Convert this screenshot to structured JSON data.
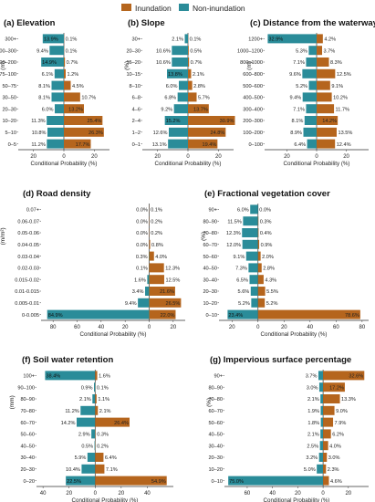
{
  "legend": {
    "items": [
      {
        "label": "Inundation",
        "color": "#b5651d"
      },
      {
        "label": "Non-inundation",
        "color": "#2a8c99"
      }
    ]
  },
  "chart_data": [
    {
      "type": "bar",
      "orientation": "diverging-horizontal",
      "title": "(a) Elevation",
      "ylabel": "(m)",
      "xlabel": "Conditional Probability (%)",
      "categories": [
        "300+",
        "200–300",
        "100–200",
        "75–100",
        "50–75",
        "30–50",
        "20–30",
        "10–20",
        "5–10",
        "0–5"
      ],
      "series": [
        {
          "name": "Non-inundation",
          "values": [
            13.9,
            9.4,
            14.9,
            6.1,
            8.1,
            8.1,
            6.0,
            11.3,
            10.8,
            11.2
          ]
        },
        {
          "name": "Inundation",
          "values": [
            0.1,
            0.1,
            0.7,
            1.2,
            4.5,
            10.7,
            13.2,
            25.4,
            26.3,
            17.7
          ]
        }
      ],
      "xticks": [
        "20",
        "0",
        "20"
      ],
      "xlim": [
        -30,
        30
      ]
    },
    {
      "type": "bar",
      "orientation": "diverging-horizontal",
      "title": "(b) Slope",
      "ylabel": "(%)",
      "xlabel": "Conditional Probability (%)",
      "categories": [
        "30+",
        "20–30",
        "15–20",
        "10–15",
        "8–10",
        "6–8",
        "4–6",
        "2–4",
        "1–2",
        "0–1"
      ],
      "series": [
        {
          "name": "Non-inundation",
          "values": [
            2.1,
            10.6,
            10.6,
            13.8,
            6.0,
            6.8,
            9.2,
            15.2,
            12.6,
            13.1
          ]
        },
        {
          "name": "Inundation",
          "values": [
            0.1,
            0.5,
            0.7,
            2.1,
            2.8,
            5.7,
            13.7,
            30.9,
            24.8,
            19.4
          ]
        }
      ],
      "xticks": [
        "20",
        "0",
        "20"
      ],
      "xlim": [
        -30,
        30
      ]
    },
    {
      "type": "bar",
      "orientation": "diverging-horizontal",
      "title": "(c) Distance from the waterway",
      "ylabel": "(m)",
      "xlabel": "Conditional Probability (%)",
      "categories": [
        "1200+",
        "1000–1200",
        "800–1000",
        "600–800",
        "500–600",
        "400–500",
        "300–400",
        "200–300",
        "100–200",
        "0–100"
      ],
      "series": [
        {
          "name": "Non-inundation",
          "values": [
            32.9,
            5.3,
            7.1,
            9.6,
            5.2,
            9.4,
            7.1,
            8.1,
            8.9,
            6.4
          ]
        },
        {
          "name": "Inundation",
          "values": [
            4.2,
            3.7,
            8.3,
            12.5,
            9.1,
            10.2,
            11.7,
            14.2,
            13.5,
            12.4
          ]
        }
      ],
      "xticks": [
        "20",
        "0",
        "20"
      ],
      "xlim": [
        -35,
        35
      ]
    },
    {
      "type": "bar",
      "orientation": "diverging-horizontal",
      "title": "(d) Road density",
      "ylabel": "(m/m²)",
      "xlabel": "Conditional Probability (%)",
      "categories": [
        "0.07+",
        "0.06-0.07",
        "0.05-0.06",
        "0.04-0.05",
        "0.03-0.04",
        "0.02-0.03",
        "0.015-0.02",
        "0.01-0.015",
        "0.005-0.01",
        "0-0.005"
      ],
      "series": [
        {
          "name": "Non-inundation",
          "values": [
            0.0,
            0.0,
            0.0,
            0.0,
            0.3,
            0.1,
            1.6,
            3.4,
            9.4,
            84.9
          ]
        },
        {
          "name": "Inundation",
          "values": [
            0.1,
            0.2,
            0.2,
            0.8,
            4.0,
            12.3,
            12.5,
            21.6,
            26.5,
            22.0
          ]
        }
      ],
      "xticks": [
        "80",
        "60",
        "40",
        "20",
        "0",
        "20"
      ],
      "xlim": [
        -90,
        30
      ]
    },
    {
      "type": "bar",
      "orientation": "diverging-horizontal",
      "title": "(e) Fractional vegetation cover",
      "ylabel": "(%)",
      "xlabel": "Conditional Probability (%)",
      "categories": [
        "90+",
        "80–90",
        "70–80",
        "60–70",
        "50–60",
        "40–50",
        "30–40",
        "20–30",
        "10–20",
        "0–10"
      ],
      "series": [
        {
          "name": "Non-inundation",
          "values": [
            6.0,
            11.5,
            12.3,
            12.0,
            9.1,
            7.3,
            6.5,
            5.6,
            5.2,
            23.4
          ]
        },
        {
          "name": "Inundation",
          "values": [
            0.0,
            0.3,
            0.4,
            0.9,
            2.0,
            2.8,
            4.3,
            5.5,
            5.2,
            78.6
          ]
        }
      ],
      "xticks": [
        "20",
        "0",
        "20",
        "40",
        "60",
        "80"
      ],
      "xlim": [
        -30,
        85
      ]
    },
    {
      "type": "bar",
      "orientation": "diverging-horizontal",
      "title": "(f) Soil water retention",
      "ylabel": "(mm)",
      "xlabel": "Conditional Probability (%)",
      "categories": [
        "100+",
        "90–100",
        "80–90",
        "70–80",
        "60–70",
        "50–60",
        "40–50",
        "30–40",
        "20–30",
        "0–20"
      ],
      "series": [
        {
          "name": "Non-inundation",
          "values": [
            38.4,
            0.9,
            2.1,
            11.2,
            14.2,
            2.9,
            0.5,
            5.9,
            10.4,
            22.5
          ]
        },
        {
          "name": "Inundation",
          "values": [
            1.6,
            0.1,
            1.1,
            2.1,
            26.4,
            0.3,
            0.2,
            6.4,
            7.1,
            54.9
          ]
        }
      ],
      "xticks": [
        "40",
        "20",
        "0",
        "20",
        "40"
      ],
      "xlim": [
        -45,
        60
      ]
    },
    {
      "type": "bar",
      "orientation": "diverging-horizontal",
      "title": "(g) Impervious surface percentage",
      "ylabel": "(%)",
      "xlabel": "Conditional Probability (%)",
      "categories": [
        "90+",
        "80–90",
        "70–80",
        "60–70",
        "50–60",
        "40–50",
        "30–40",
        "20–30",
        "10–20",
        "0–10"
      ],
      "series": [
        {
          "name": "Non-inundation",
          "values": [
            3.7,
            3.0,
            2.1,
            1.9,
            1.8,
            2.1,
            2.5,
            3.2,
            5.0,
            75.0
          ]
        },
        {
          "name": "Inundation",
          "values": [
            32.6,
            17.2,
            13.3,
            9.0,
            7.9,
            6.2,
            4.0,
            3.0,
            2.3,
            4.6
          ]
        }
      ],
      "xticks": [
        "60",
        "40",
        "20",
        "0",
        "20"
      ],
      "xlim": [
        -78,
        36
      ]
    }
  ]
}
